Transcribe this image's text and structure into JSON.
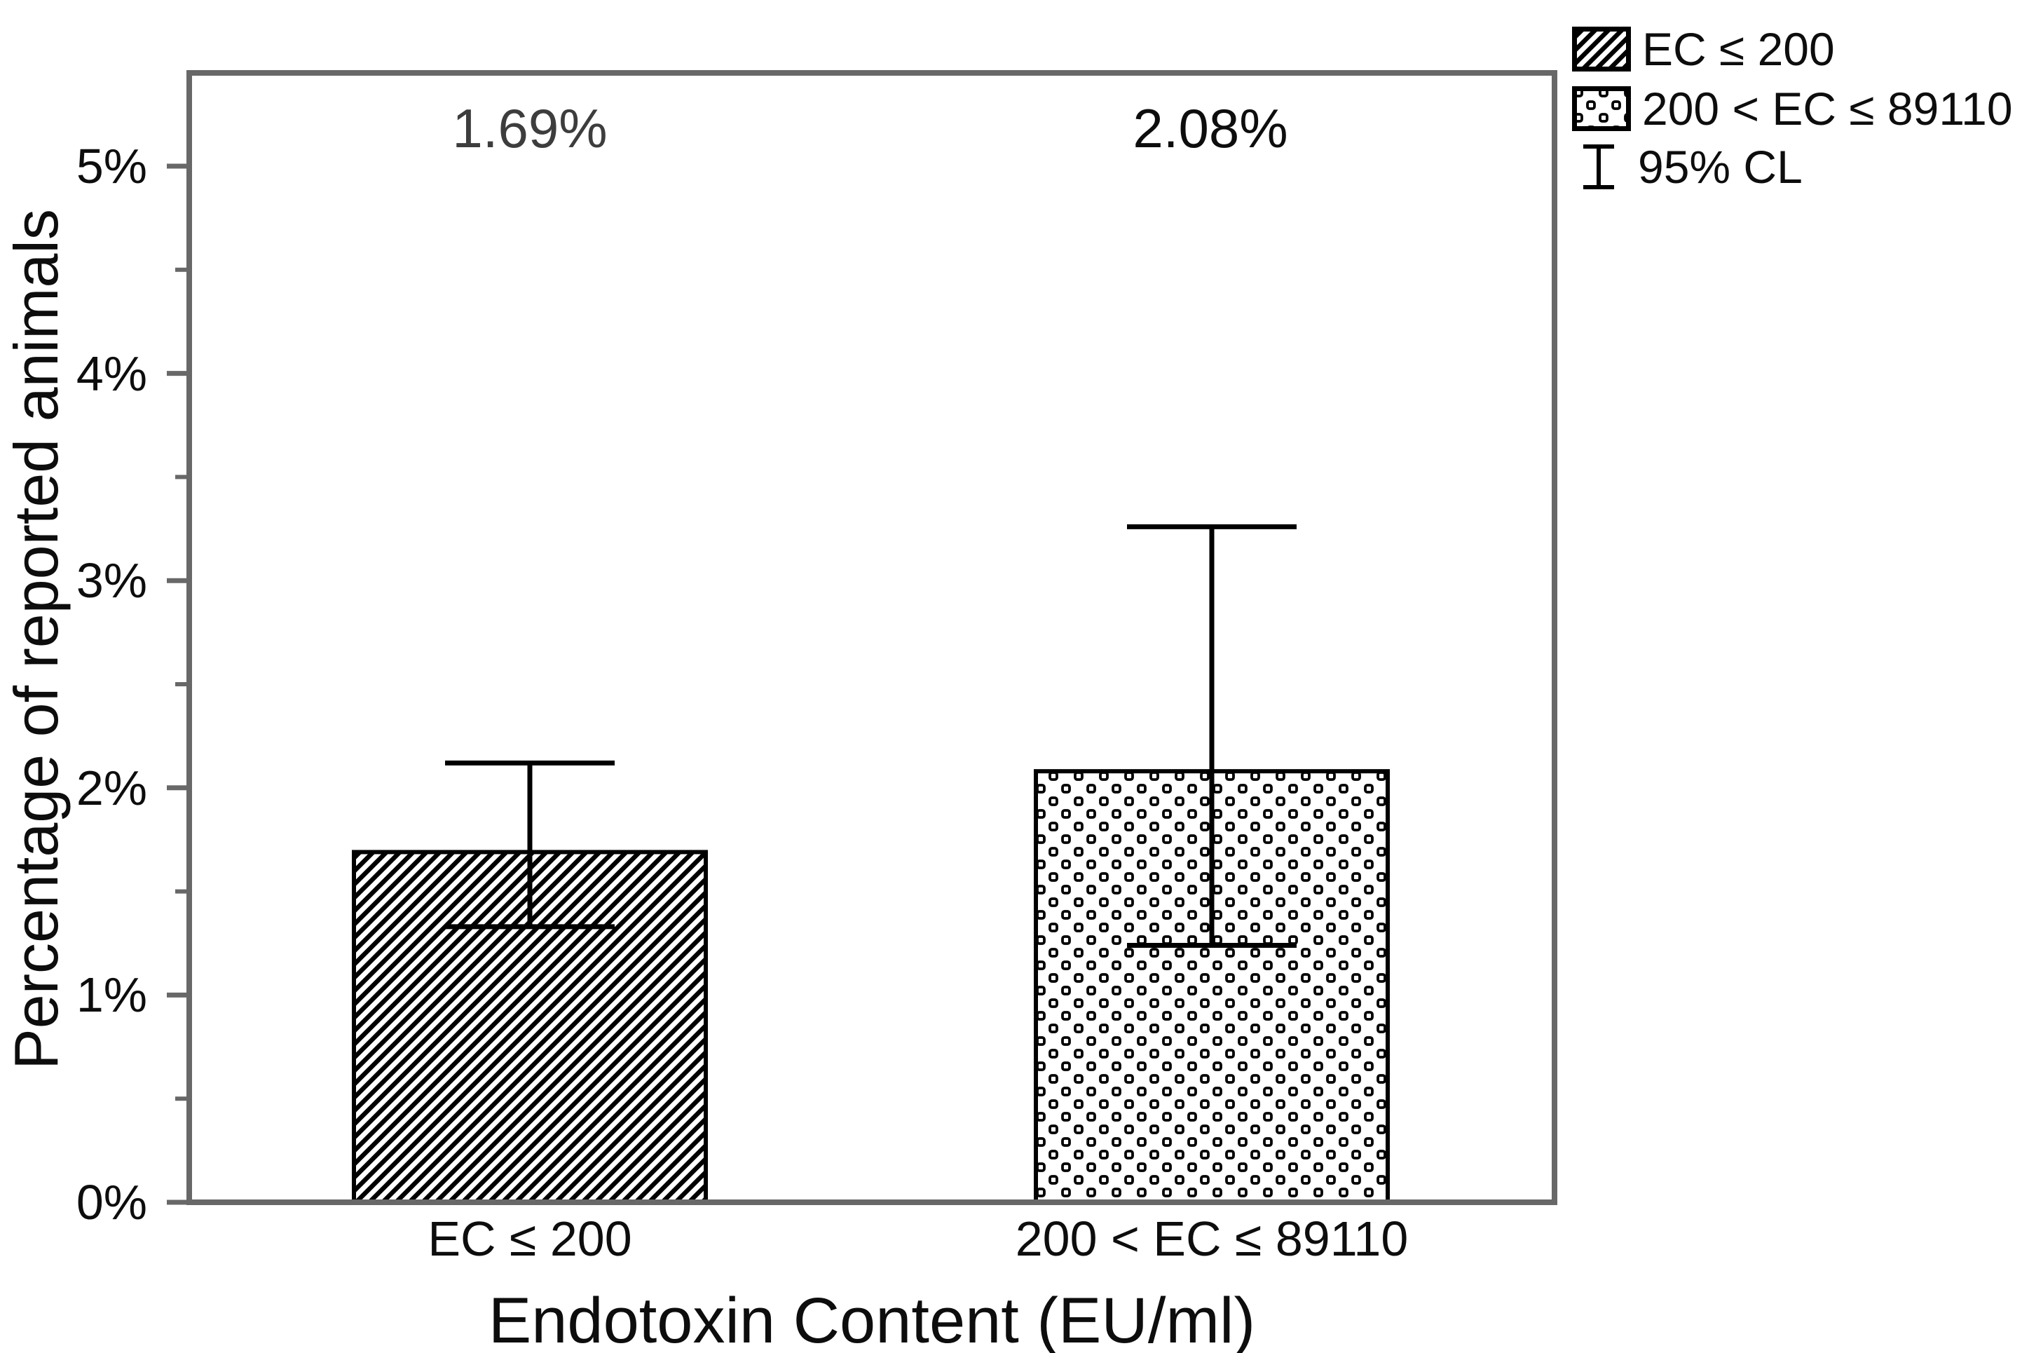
{
  "chart_data": {
    "type": "bar",
    "title": "",
    "xlabel": "Endotoxin Content (EU/ml)",
    "ylabel": "Percentage of reported animals",
    "categories": [
      "EC ≤ 200",
      "200 < EC ≤ 89110"
    ],
    "values": [
      1.69,
      2.08
    ],
    "bar_labels": [
      "1.69%",
      "2.08%"
    ],
    "ci_low": [
      1.33,
      1.24
    ],
    "ci_high": [
      2.12,
      3.26
    ],
    "ylim": [
      0,
      5.46
    ],
    "y_ticks": [
      0,
      1,
      2,
      3,
      4,
      5
    ],
    "y_tick_labels": [
      "0%",
      "1%",
      "2%",
      "3%",
      "4%",
      "5%"
    ],
    "y_minor_ticks": [
      0.5,
      1.5,
      2.5,
      3.5,
      4.5
    ],
    "grid": "off",
    "legend_position": "top-right-outside",
    "legend": [
      {
        "label": "EC ≤ 200",
        "swatch": "diagonal-hatch"
      },
      {
        "label": "200 < EC ≤ 89110",
        "swatch": "dotted-rings"
      },
      {
        "label": "95% CL",
        "swatch": "error-bar"
      }
    ],
    "colors": {
      "frame": "#686868",
      "bar_stroke": "#000000",
      "error_bar": "#000000",
      "data_label_1": "#3d3d3d",
      "data_label_2": "#0d0d0d",
      "text": "#0d0d0d",
      "background": "#ffffff"
    }
  }
}
